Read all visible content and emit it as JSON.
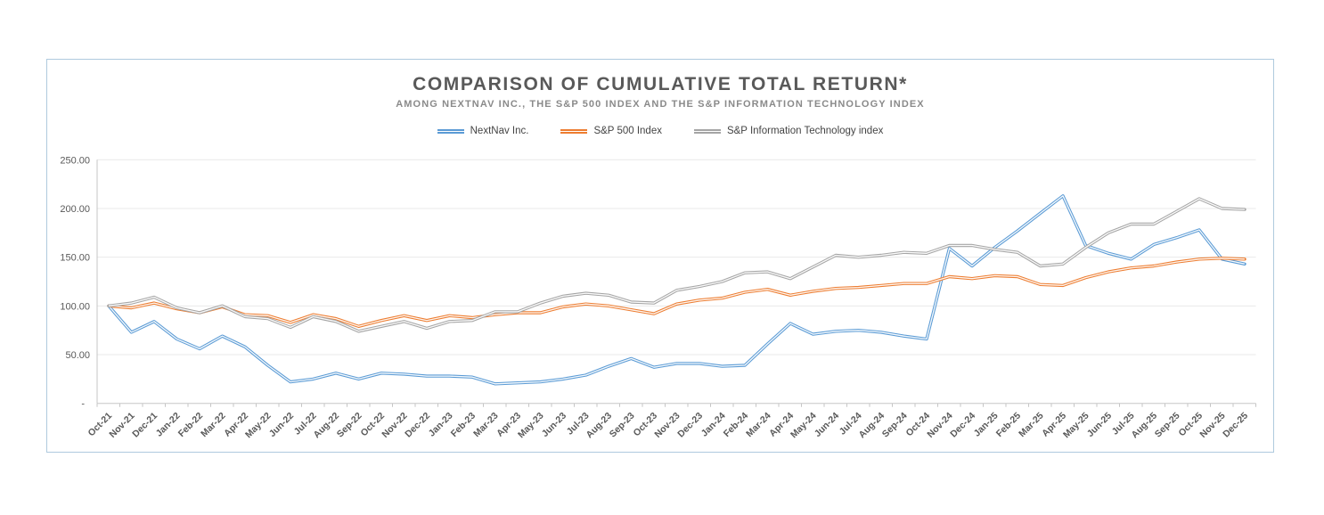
{
  "chart_data": {
    "type": "line",
    "title": "COMPARISON OF CUMULATIVE TOTAL RETURN*",
    "subtitle": "AMONG NEXTNAV INC., THE S&P 500 INDEX AND THE S&P INFORMATION TECHNOLOGY INDEX",
    "legend_position": "top",
    "grid": "horizontal",
    "x_tick_rotation": -45,
    "categories": [
      "Oct-21",
      "Nov-21",
      "Dec-21",
      "Jan-22",
      "Feb-22",
      "Mar-22",
      "Apr-22",
      "May-22",
      "Jun-22",
      "Jul-22",
      "Aug-22",
      "Sep-22",
      "Oct-22",
      "Nov-22",
      "Dec-22",
      "Jan-23",
      "Feb-23",
      "Mar-23",
      "Apr-23",
      "May-23",
      "Jun-23",
      "Jul-23",
      "Aug-23",
      "Sep-23",
      "Oct-23",
      "Nov-23",
      "Dec-23",
      "Jan-24",
      "Feb-24",
      "Mar-24",
      "Apr-24",
      "May-24",
      "Jun-24",
      "Jul-24",
      "Aug-24",
      "Sep-24",
      "Oct-24",
      "Nov-24",
      "Dec-24",
      "Jan-25",
      "Feb-25",
      "Mar-25",
      "Apr-25",
      "May-25",
      "Jun-25",
      "Jul-25",
      "Aug-25",
      "Sep-25",
      "Oct-25",
      "Nov-25",
      "Dec-25"
    ],
    "series": [
      {
        "name": "NextNav Inc.",
        "color": "#5b9bd5",
        "values": [
          100,
          73,
          84,
          66,
          56,
          69,
          58,
          39,
          22,
          25,
          31,
          25,
          31,
          30,
          28,
          28,
          27,
          20,
          21,
          22,
          25,
          29,
          38,
          46,
          37,
          41,
          41,
          38,
          39,
          61,
          82,
          71,
          74,
          75,
          73,
          69,
          66,
          159,
          141,
          160,
          177,
          195,
          213,
          162,
          154,
          148,
          163,
          170,
          178,
          148,
          143
        ]
      },
      {
        "name": "S&P 500 Index",
        "color": "#ed7d31",
        "values": [
          100,
          98,
          103,
          97,
          93,
          99,
          91,
          90,
          83,
          91,
          87,
          79,
          85,
          90,
          85,
          90,
          88,
          91,
          93,
          93,
          99,
          102,
          100,
          96,
          92,
          102,
          106,
          108,
          114,
          117,
          111,
          115,
          118,
          119,
          121,
          123,
          123,
          130,
          128,
          131,
          130,
          122,
          121,
          129,
          135,
          139,
          141,
          145,
          148,
          149,
          148
        ]
      },
      {
        "name": "S&P Information Technology index",
        "color": "#a5a5a5",
        "values": [
          100,
          103,
          109,
          98,
          93,
          100,
          89,
          87,
          78,
          89,
          84,
          74,
          79,
          84,
          77,
          84,
          85,
          94,
          94,
          103,
          110,
          113,
          111,
          104,
          103,
          116,
          120,
          125,
          134,
          135,
          128,
          140,
          152,
          150,
          152,
          155,
          154,
          162,
          162,
          158,
          155,
          141,
          143,
          160,
          175,
          184,
          184,
          197,
          210,
          200,
          199
        ]
      }
    ],
    "ylim": [
      0,
      250
    ],
    "y_ticks": [
      {
        "value": 250,
        "label": "250.00"
      },
      {
        "value": 200,
        "label": "200.00"
      },
      {
        "value": 150,
        "label": "150.00"
      },
      {
        "value": 100,
        "label": "100.00"
      },
      {
        "value": 50,
        "label": "50.00"
      },
      {
        "value": 0,
        "label": "-"
      }
    ],
    "xlabel": "",
    "ylabel": ""
  },
  "style": {
    "frame_border_color": "#afcade",
    "title_color": "#595959",
    "subtitle_color": "#8a8a8a",
    "axis_text_color": "#595959",
    "gridline_color": "#e9e9e9",
    "axis_line_color": "#c6c6c6"
  }
}
